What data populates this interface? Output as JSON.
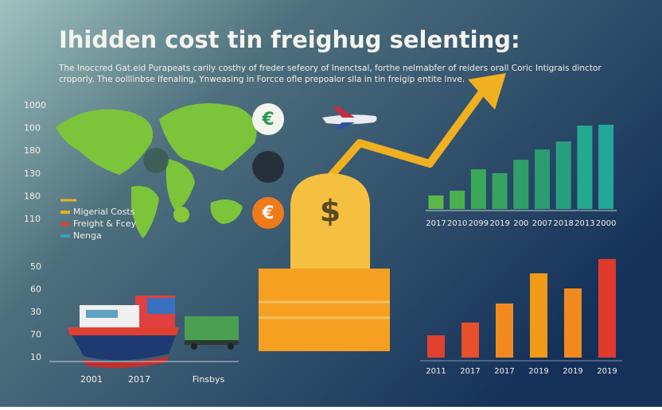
{
  "title": "Ihidden cost tin freighug selenting:",
  "subtitle": [
    "The Inoccred Gat.eid Purapeats carily costhy of freder sefeory of Inenctsal, forthe nelmabfer of reiders orall Coric Intigrais dinctor",
    "croporly. The oolllinbse Ifenaling, Ynweasing in Forcce ofle prepoalor slla in tin freigip entite lnve."
  ],
  "map_panel": {
    "axis_labels": [
      "1000",
      "100",
      "180",
      "130",
      "180",
      "110"
    ],
    "legend": [
      {
        "name": "Migerial Costs",
        "color": "#e8b020"
      },
      {
        "name": "Freight & Fcey",
        "color": "#e04030"
      },
      {
        "name": "Nenga",
        "color": "#40a0b0"
      }
    ]
  },
  "symbols": [
    "€",
    "€",
    "$"
  ],
  "ship_panel": {
    "axis_labels": [
      "50",
      "60",
      "30",
      "70",
      "10"
    ],
    "labels": [
      "2001",
      "2017",
      "Finsbys"
    ]
  },
  "chart_data": [
    {
      "type": "bar",
      "categories": [
        "2017",
        "2010",
        "2099",
        "2019",
        "200",
        "2007",
        "2018",
        "2013",
        "2000"
      ],
      "values": [
        17,
        23,
        50,
        45,
        62,
        75,
        85,
        105,
        106
      ],
      "colors": [
        "#5cb84a",
        "#4cb050",
        "#3aa858",
        "#36a460",
        "#30a068",
        "#2a9c70",
        "#28a080",
        "#24a890",
        "#22a89a"
      ]
    },
    {
      "type": "bar",
      "categories": [
        "2011",
        "2017",
        "2017",
        "2019",
        "2019",
        "2019"
      ],
      "values": [
        28,
        44,
        68,
        106,
        87,
        124
      ],
      "colors": [
        "#e04030",
        "#e8502a",
        "#f08a20",
        "#f09a18",
        "#f08a20",
        "#e03a2c"
      ]
    }
  ]
}
